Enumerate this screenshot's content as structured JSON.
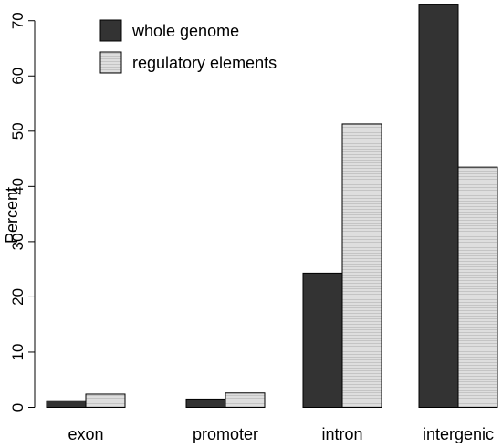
{
  "chart_data": {
    "type": "bar",
    "categories": [
      "exon",
      "promoter",
      "intron",
      "intergenic"
    ],
    "series": [
      {
        "name": "whole genome",
        "values": [
          1.2,
          1.5,
          24.3,
          73.0
        ],
        "color": "#333333"
      },
      {
        "name": "regulatory elements",
        "values": [
          2.4,
          2.6,
          51.3,
          43.5
        ],
        "color": "#d9d9d9"
      }
    ],
    "ylabel": "Percent",
    "yticks": [
      0,
      10,
      20,
      30,
      40,
      50,
      60,
      70
    ],
    "ylim": [
      0,
      73
    ],
    "legend_position": "top-left",
    "grid": false
  }
}
